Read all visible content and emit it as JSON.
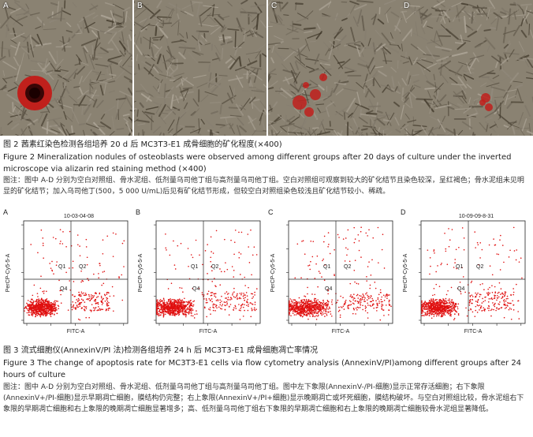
{
  "micrographs": [
    {
      "label": "A"
    },
    {
      "label": "B"
    },
    {
      "label": "C"
    },
    {
      "label": "D"
    }
  ],
  "figure2": {
    "caption_cn": "图 2   茜素红染色检测各组培养 20 d 后 MC3T3-E1 成骨细胞的矿化程度(×400)",
    "caption_en": "Figure 2    Mineralization nodules of osteoblasts were observed among different groups after 20 days of culture under the inverted microscope via alizarin red staining method (×400)",
    "note": "图注：图中 A-D 分别为空白对照组、骨水泥组、低剂量乌司他丁组与高剂量乌司他丁组。空白对照组可观察到较大的矿化结节且染色较深，呈红褐色；骨水泥组未见明显的矿化结节；加入乌司他丁(500，5 000 U/mL)后见有矿化结节形成，但较空白对照组染色较浅且矿化结节较小、稀疏。"
  },
  "flow_panels": [
    {
      "label": "A",
      "timestamp": "10-03-04-08",
      "q1": "Q1",
      "q2": "Q2",
      "q4": "Q4",
      "xlabel": "FITC-A",
      "ylabel": "PerCP-Cy5-5-A"
    },
    {
      "label": "B",
      "timestamp": "",
      "q1": "Q1",
      "q2": "Q2",
      "q4": "Q4",
      "xlabel": "FITC-A",
      "ylabel": "PerCP-Cy5-5-A"
    },
    {
      "label": "C",
      "timestamp": "",
      "q1": "Q1",
      "q2": "Q2",
      "q4": "Q4",
      "xlabel": "FITC-A",
      "ylabel": "PerCP-Cy5-5-A"
    },
    {
      "label": "D",
      "timestamp": "10-09-09-8-31",
      "q1": "Q1",
      "q2": "Q2",
      "q4": "Q4",
      "xlabel": "FITC-A",
      "ylabel": "PerCP-Cy5-5-A"
    }
  ],
  "figure3": {
    "caption_cn": "图 3   流式细胞仪(AnnexinV/PI 法)检测各组培养 24 h 后 MC3T3-E1 成骨细胞凋亡率情况",
    "caption_en": "Figure 3    The change of apoptosis rate for MC3T3-E1 cells via flow cytometry analysis (AnnexinV/PI)among different groups after 24 hours of culture",
    "note": "图注：图中 A-D 分别为空白对照组、骨水泥组、低剂量乌司他丁组与高剂量乌司他丁组。图中左下象限(AnnexinV-/PI-细胞)显示正常存活细胞；右下象限(AnnexinV+/PI-细胞)显示早期凋亡细胞，膜结构仍完整；右上象限(AnnexinV+/PI+细胞)显示晚期凋亡或坏死细胞，膜结构破坏。与空白对照组比较，骨水泥组右下象限的早期凋亡细胞和右上象限的晚期凋亡细胞显著增多；高、低剂量乌司他丁组右下象限的早期凋亡细胞和右上象限的晚期凋亡细胞较骨水泥组显著降低。"
  },
  "colors": {
    "micro_bg": "#8a8272",
    "stain_red": "#c0201c",
    "dot_red": "#e01010"
  }
}
